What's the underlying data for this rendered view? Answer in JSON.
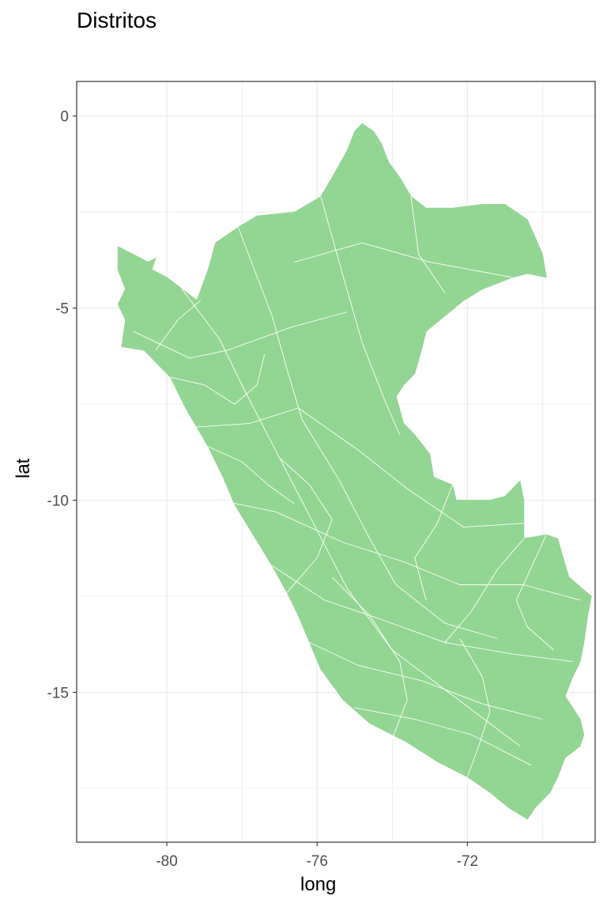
{
  "title": "Distritos",
  "chart_data": {
    "type": "map",
    "title": "Distritos",
    "xlabel": "long",
    "ylabel": "lat",
    "xlim": [
      -82.4,
      -68.6
    ],
    "ylim": [
      -18.9,
      0.9
    ],
    "x_ticks": [
      -80,
      -76,
      -72
    ],
    "x_tick_labels": [
      "-80",
      "-76",
      "-72"
    ],
    "y_ticks": [
      0,
      -5,
      -10,
      -15
    ],
    "y_tick_labels": [
      "0",
      "-5",
      "-10",
      "-15"
    ],
    "grid": true,
    "fill_color": "#93d593",
    "border_color": "#ffffff",
    "panel_background": "#ffffff",
    "grid_color": "#ebebeb",
    "outline": [
      [
        -81.3,
        -3.4
      ],
      [
        -80.9,
        -3.6
      ],
      [
        -80.5,
        -3.8
      ],
      [
        -80.3,
        -3.7
      ],
      [
        -80.4,
        -4.0
      ],
      [
        -80.0,
        -4.2
      ],
      [
        -79.6,
        -4.5
      ],
      [
        -79.2,
        -4.8
      ],
      [
        -78.9,
        -4.0
      ],
      [
        -78.7,
        -3.3
      ],
      [
        -78.1,
        -2.9
      ],
      [
        -77.6,
        -2.6
      ],
      [
        -76.6,
        -2.5
      ],
      [
        -75.9,
        -2.1
      ],
      [
        -75.6,
        -1.6
      ],
      [
        -75.2,
        -0.9
      ],
      [
        -75.0,
        -0.4
      ],
      [
        -74.8,
        -0.2
      ],
      [
        -74.5,
        -0.4
      ],
      [
        -74.3,
        -0.7
      ],
      [
        -74.1,
        -1.2
      ],
      [
        -73.8,
        -1.6
      ],
      [
        -73.5,
        -2.1
      ],
      [
        -73.1,
        -2.4
      ],
      [
        -72.4,
        -2.4
      ],
      [
        -71.6,
        -2.3
      ],
      [
        -71.0,
        -2.3
      ],
      [
        -70.4,
        -2.7
      ],
      [
        -70.0,
        -3.6
      ],
      [
        -69.9,
        -4.2
      ],
      [
        -70.4,
        -4.1
      ],
      [
        -70.8,
        -4.2
      ],
      [
        -71.6,
        -4.5
      ],
      [
        -72.1,
        -4.8
      ],
      [
        -72.6,
        -5.2
      ],
      [
        -73.1,
        -5.6
      ],
      [
        -73.2,
        -6.0
      ],
      [
        -73.4,
        -6.7
      ],
      [
        -73.7,
        -7.0
      ],
      [
        -73.9,
        -7.3
      ],
      [
        -73.7,
        -8.0
      ],
      [
        -73.4,
        -8.3
      ],
      [
        -73.0,
        -8.8
      ],
      [
        -72.9,
        -9.4
      ],
      [
        -72.4,
        -9.6
      ],
      [
        -72.3,
        -10.0
      ],
      [
        -71.6,
        -10.0
      ],
      [
        -71.4,
        -10.0
      ],
      [
        -71.0,
        -9.9
      ],
      [
        -70.6,
        -9.5
      ],
      [
        -70.5,
        -10.0
      ],
      [
        -70.5,
        -11.0
      ],
      [
        -69.9,
        -10.9
      ],
      [
        -69.6,
        -11.0
      ],
      [
        -69.3,
        -12.0
      ],
      [
        -68.7,
        -12.5
      ],
      [
        -68.8,
        -13.0
      ],
      [
        -68.9,
        -13.7
      ],
      [
        -69.0,
        -14.2
      ],
      [
        -69.2,
        -14.6
      ],
      [
        -69.4,
        -15.1
      ],
      [
        -69.2,
        -15.4
      ],
      [
        -69.0,
        -15.7
      ],
      [
        -68.9,
        -16.1
      ],
      [
        -69.0,
        -16.4
      ],
      [
        -69.4,
        -16.7
      ],
      [
        -69.6,
        -17.2
      ],
      [
        -69.8,
        -17.6
      ],
      [
        -70.2,
        -18.0
      ],
      [
        -70.4,
        -18.3
      ],
      [
        -70.9,
        -18.0
      ],
      [
        -71.4,
        -17.6
      ],
      [
        -72.0,
        -17.2
      ],
      [
        -72.8,
        -16.8
      ],
      [
        -73.6,
        -16.3
      ],
      [
        -74.6,
        -15.8
      ],
      [
        -75.3,
        -15.2
      ],
      [
        -75.9,
        -14.4
      ],
      [
        -76.2,
        -13.7
      ],
      [
        -76.5,
        -13.0
      ],
      [
        -76.8,
        -12.4
      ],
      [
        -77.2,
        -11.7
      ],
      [
        -77.7,
        -10.9
      ],
      [
        -78.2,
        -10.1
      ],
      [
        -78.5,
        -9.4
      ],
      [
        -78.9,
        -8.6
      ],
      [
        -79.5,
        -7.6
      ],
      [
        -79.9,
        -6.8
      ],
      [
        -80.6,
        -6.1
      ],
      [
        -81.2,
        -6.0
      ],
      [
        -81.1,
        -5.3
      ],
      [
        -81.3,
        -4.9
      ],
      [
        -81.1,
        -4.5
      ],
      [
        -81.3,
        -4.0
      ],
      [
        -81.3,
        -3.4
      ]
    ],
    "division_lines": [
      [
        [
          -78.1,
          -2.9
        ],
        [
          -77.2,
          -5.2
        ],
        [
          -76.8,
          -6.6
        ],
        [
          -76.4,
          -7.9
        ],
        [
          -75.4,
          -9.5
        ],
        [
          -74.6,
          -11.0
        ],
        [
          -73.9,
          -12.2
        ],
        [
          -72.6,
          -13.2
        ],
        [
          -71.2,
          -13.6
        ]
      ],
      [
        [
          -75.9,
          -2.1
        ],
        [
          -75.3,
          -4.2
        ],
        [
          -74.8,
          -5.9
        ],
        [
          -74.2,
          -7.4
        ],
        [
          -73.8,
          -8.3
        ]
      ],
      [
        [
          -73.5,
          -2.1
        ],
        [
          -73.3,
          -3.6
        ],
        [
          -72.6,
          -4.6
        ]
      ],
      [
        [
          -76.6,
          -3.8
        ],
        [
          -74.8,
          -3.3
        ],
        [
          -73.0,
          -3.8
        ],
        [
          -70.8,
          -4.2
        ]
      ],
      [
        [
          -79.6,
          -4.5
        ],
        [
          -78.6,
          -5.8
        ],
        [
          -77.9,
          -7.2
        ],
        [
          -77.0,
          -8.9
        ],
        [
          -76.1,
          -10.6
        ],
        [
          -75.2,
          -12.3
        ],
        [
          -74.0,
          -13.9
        ],
        [
          -72.5,
          -15.0
        ],
        [
          -70.6,
          -16.4
        ]
      ],
      [
        [
          -80.9,
          -5.6
        ],
        [
          -79.4,
          -6.3
        ],
        [
          -78.4,
          -6.1
        ],
        [
          -76.7,
          -5.5
        ],
        [
          -75.2,
          -5.1
        ]
      ],
      [
        [
          -79.3,
          -8.1
        ],
        [
          -77.8,
          -8.0
        ],
        [
          -76.5,
          -7.6
        ],
        [
          -74.9,
          -8.7
        ],
        [
          -73.6,
          -9.7
        ],
        [
          -72.1,
          -10.7
        ],
        [
          -70.5,
          -10.6
        ]
      ],
      [
        [
          -78.6,
          -10.0
        ],
        [
          -77.1,
          -10.3
        ],
        [
          -75.3,
          -11.1
        ],
        [
          -73.7,
          -11.6
        ],
        [
          -72.2,
          -12.2
        ],
        [
          -70.5,
          -12.2
        ],
        [
          -69.0,
          -12.6
        ]
      ],
      [
        [
          -77.2,
          -11.7
        ],
        [
          -75.8,
          -12.6
        ],
        [
          -74.3,
          -13.1
        ],
        [
          -72.6,
          -13.7
        ],
        [
          -70.8,
          -14.0
        ],
        [
          -69.2,
          -14.2
        ]
      ],
      [
        [
          -76.2,
          -13.7
        ],
        [
          -74.9,
          -14.3
        ],
        [
          -73.2,
          -14.7
        ],
        [
          -71.6,
          -15.3
        ],
        [
          -70.0,
          -15.7
        ]
      ],
      [
        [
          -75.0,
          -15.4
        ],
        [
          -73.4,
          -15.7
        ],
        [
          -71.9,
          -16.1
        ],
        [
          -70.3,
          -16.9
        ]
      ],
      [
        [
          -72.0,
          -17.2
        ],
        [
          -71.7,
          -16.4
        ],
        [
          -71.4,
          -15.5
        ],
        [
          -71.6,
          -14.6
        ],
        [
          -72.2,
          -13.6
        ]
      ],
      [
        [
          -74.0,
          -16.2
        ],
        [
          -73.6,
          -15.2
        ],
        [
          -73.8,
          -14.2
        ],
        [
          -74.6,
          -13.0
        ],
        [
          -75.6,
          -12.0
        ]
      ],
      [
        [
          -76.8,
          -12.4
        ],
        [
          -76.0,
          -11.5
        ],
        [
          -75.6,
          -10.5
        ],
        [
          -76.2,
          -9.6
        ],
        [
          -77.0,
          -8.9
        ]
      ],
      [
        [
          -78.9,
          -8.6
        ],
        [
          -78.0,
          -9.0
        ],
        [
          -77.3,
          -9.6
        ],
        [
          -76.6,
          -10.1
        ]
      ],
      [
        [
          -80.3,
          -6.1
        ],
        [
          -79.7,
          -5.3
        ],
        [
          -79.1,
          -4.8
        ]
      ],
      [
        [
          -79.9,
          -6.8
        ],
        [
          -79.0,
          -7.0
        ],
        [
          -78.2,
          -7.5
        ],
        [
          -77.6,
          -7.0
        ],
        [
          -77.4,
          -6.2
        ]
      ],
      [
        [
          -72.4,
          -9.6
        ],
        [
          -72.8,
          -10.6
        ],
        [
          -73.4,
          -11.5
        ],
        [
          -73.1,
          -12.6
        ]
      ],
      [
        [
          -70.5,
          -11.0
        ],
        [
          -71.2,
          -11.8
        ],
        [
          -71.9,
          -12.9
        ],
        [
          -72.6,
          -13.7
        ]
      ],
      [
        [
          -69.9,
          -10.9
        ],
        [
          -70.7,
          -12.6
        ],
        [
          -70.4,
          -13.3
        ],
        [
          -69.7,
          -13.9
        ]
      ]
    ]
  }
}
